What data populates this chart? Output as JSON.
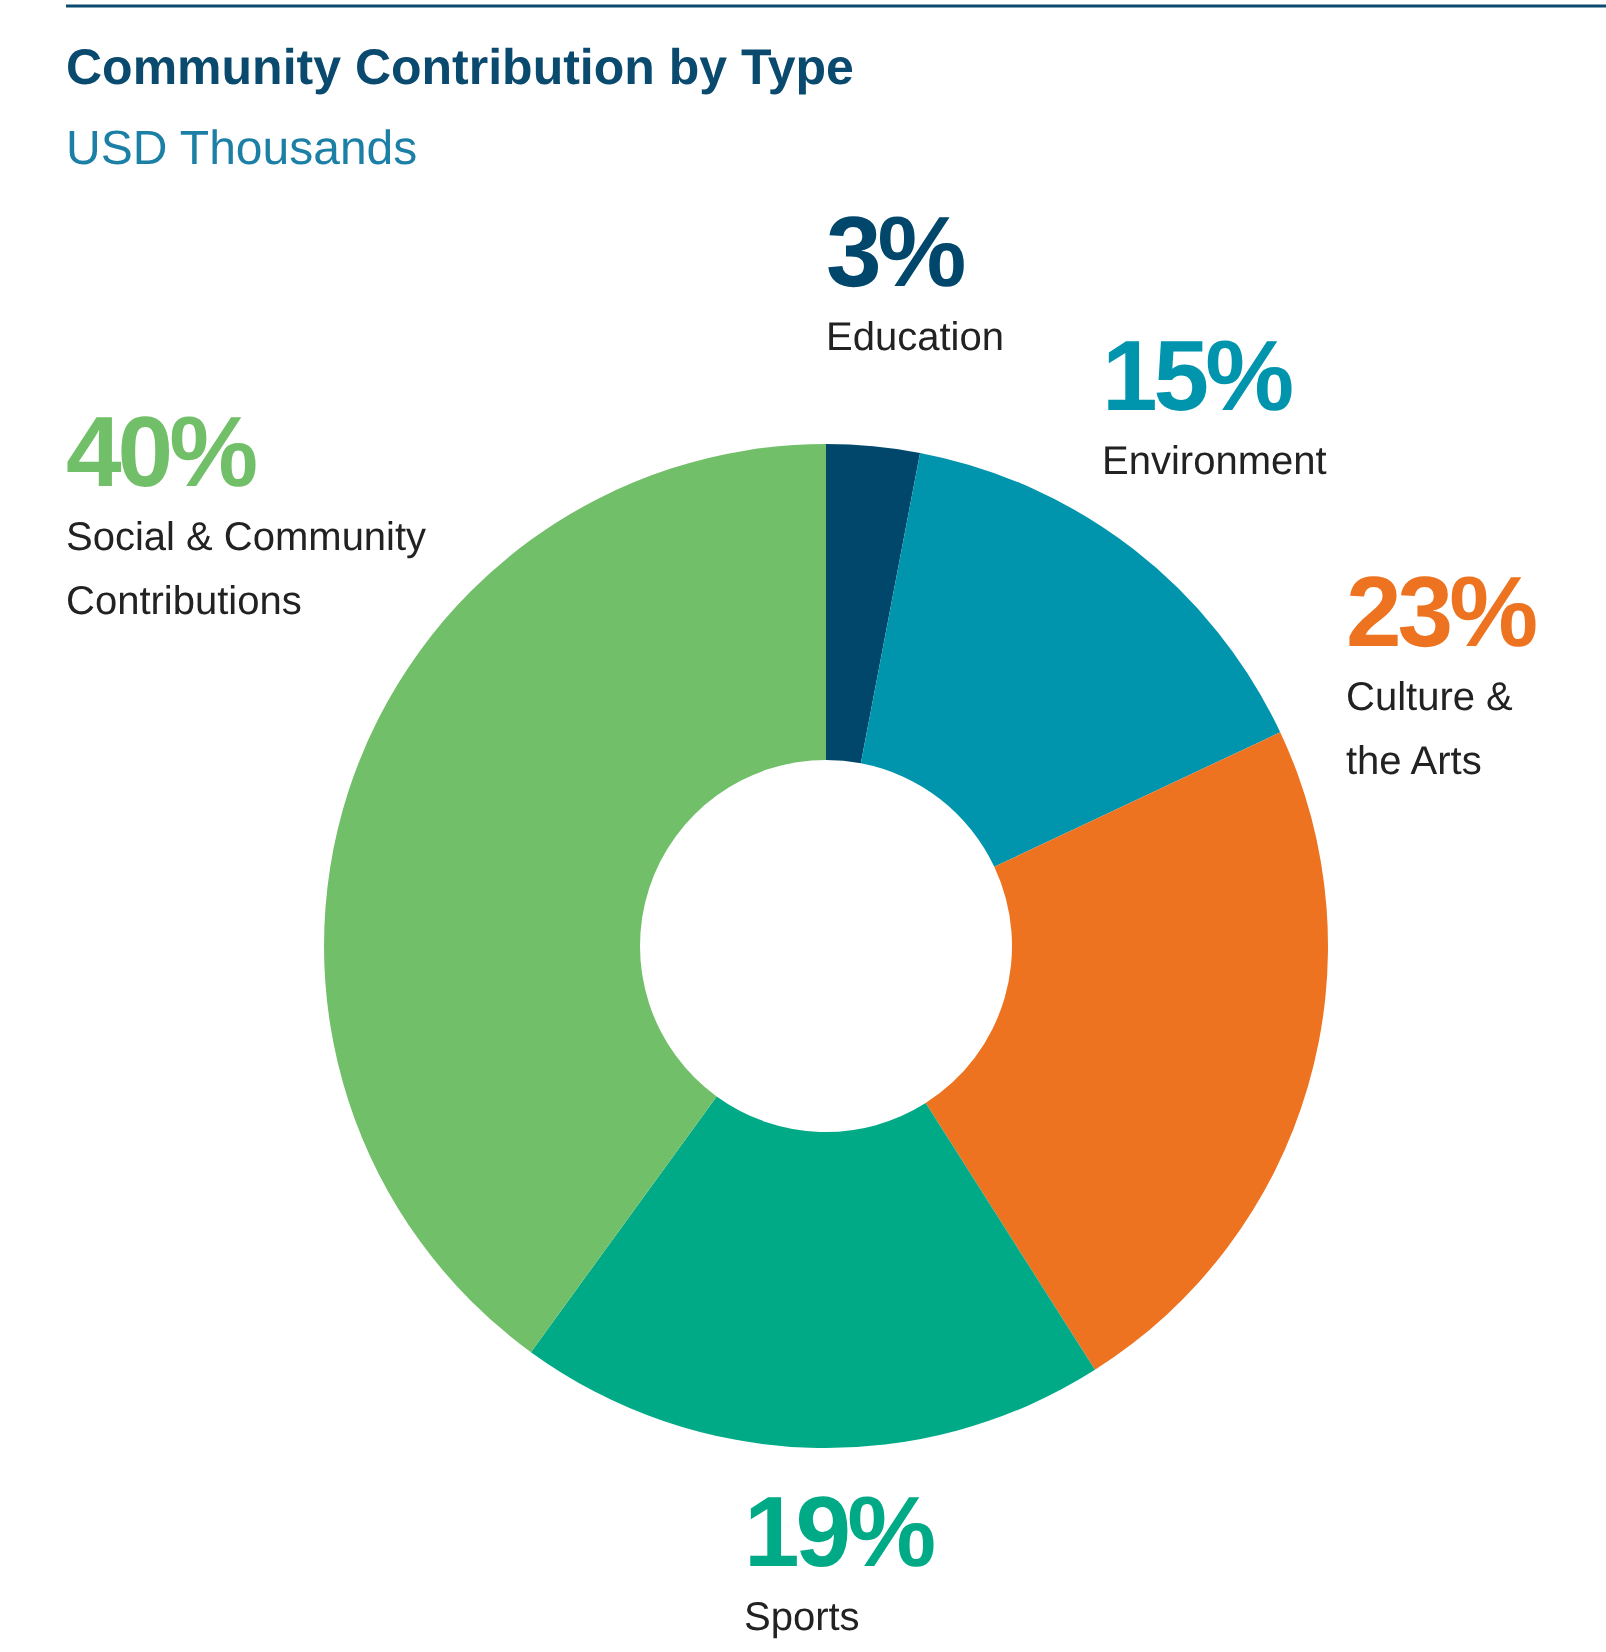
{
  "chart_data": {
    "type": "donut",
    "title": "Community Contribution by Type",
    "subtitle": "USD Thousands",
    "categories": [
      "Education",
      "Environment",
      "Culture & the Arts",
      "Sports",
      "Social & Community Contributions"
    ],
    "values": [
      3,
      15,
      23,
      19,
      40
    ],
    "value_labels": [
      "3%",
      "15%",
      "23%",
      "19%",
      "40%"
    ],
    "colors": [
      "#00476b",
      "#0095ad",
      "#ed7320",
      "#00aa86",
      "#72bf69"
    ]
  }
}
